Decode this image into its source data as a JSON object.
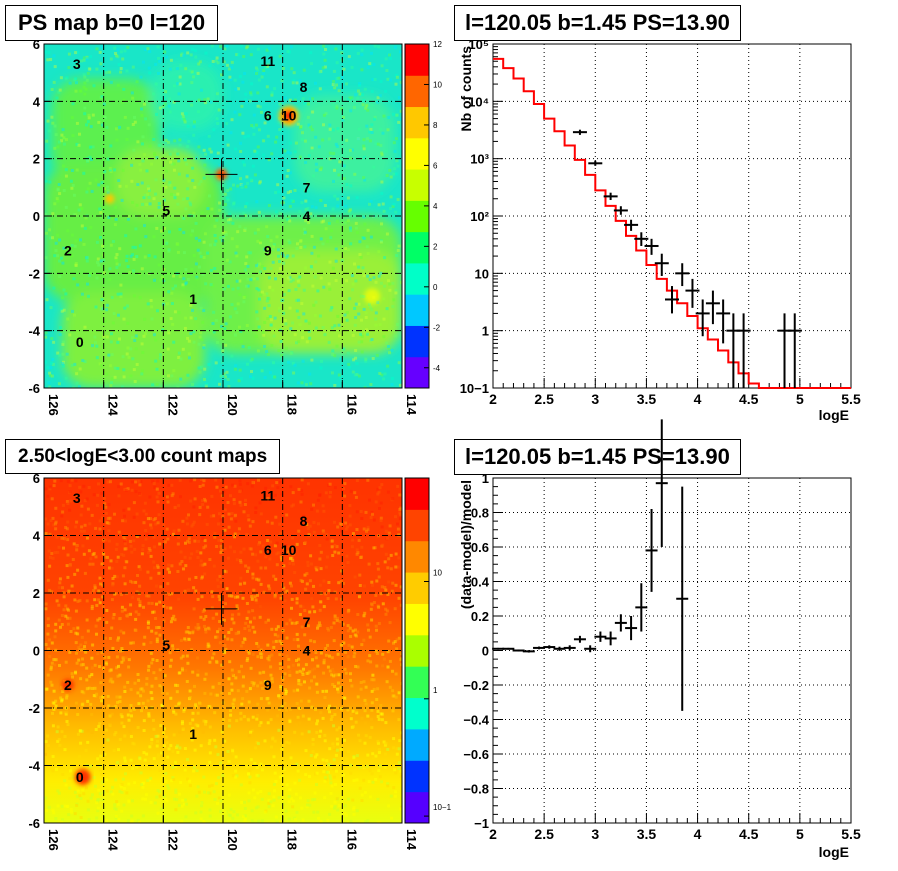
{
  "colors": {
    "model_line": "#ff0000",
    "data_points": "#000000",
    "grid": "#000000",
    "psmap_background": "#19e6c8",
    "psmap_palette": [
      "#6600ff",
      "#0033ff",
      "#00c8ff",
      "#00ffc8",
      "#00ff66",
      "#66ff00",
      "#c8ff00",
      "#ffff00",
      "#ffc800",
      "#ff6600",
      "#ff0000"
    ],
    "count_palette": [
      "#5500ff",
      "#0033ff",
      "#00aaff",
      "#00ffcc",
      "#33ff55",
      "#aaff00",
      "#ffff00",
      "#ffcc00",
      "#ff8800",
      "#ff4400",
      "#ff0000"
    ]
  },
  "chart_data": [
    {
      "panel": "ps-map",
      "type": "heatmap",
      "title": "PS map b=0 l=120",
      "x_ticks": [
        "126",
        "124",
        "122",
        "120",
        "118",
        "116",
        "114"
      ],
      "y_ticks": [
        "6",
        "4",
        "2",
        "0",
        "-2",
        "-4",
        "-6"
      ],
      "xlim": [
        126,
        114
      ],
      "ylim": [
        -6,
        6
      ],
      "grid": true,
      "colorbar_ticks": [
        "12",
        "10",
        "8",
        "6",
        "4",
        "2",
        "0",
        "-2",
        "-4"
      ],
      "colorbar_range": [
        -5,
        12
      ],
      "marker": {
        "l": 120.05,
        "b": 1.45
      },
      "sources": [
        {
          "label": "0",
          "l": 124.8,
          "b": -4.4
        },
        {
          "label": "1",
          "l": 121.0,
          "b": -2.9
        },
        {
          "label": "2",
          "l": 125.2,
          "b": -1.2
        },
        {
          "label": "3",
          "l": 124.9,
          "b": 5.3
        },
        {
          "label": "4",
          "l": 117.2,
          "b": 0.0
        },
        {
          "label": "5",
          "l": 121.9,
          "b": 0.2
        },
        {
          "label": "6",
          "l": 118.5,
          "b": 3.5
        },
        {
          "label": "7",
          "l": 117.2,
          "b": 1.0
        },
        {
          "label": "8",
          "l": 117.3,
          "b": 4.5
        },
        {
          "label": "9",
          "l": 118.5,
          "b": -1.2
        },
        {
          "label": "10",
          "l": 117.8,
          "b": 3.5
        },
        {
          "label": "11",
          "l": 118.5,
          "b": 5.4
        }
      ]
    },
    {
      "panel": "spectrum",
      "type": "line",
      "title": "l=120.05 b=1.45 PS=13.90",
      "xlabel": "logE",
      "ylabel": "Nb of counts",
      "xlim": [
        2,
        5.5
      ],
      "ylim": [
        0.1,
        100000
      ],
      "yscale": "log",
      "grid": true,
      "x_ticks": [
        "2",
        "2.5",
        "3",
        "3.5",
        "4",
        "4.5",
        "5",
        "5.5"
      ],
      "y_ticks": [
        "10−1",
        "1",
        "10",
        "10²",
        "10³",
        "10⁴",
        "10⁵"
      ],
      "model": {
        "bin_edges": [
          2.0,
          2.1,
          2.2,
          2.3,
          2.4,
          2.5,
          2.6,
          2.7,
          2.8,
          2.9,
          3.0,
          3.1,
          3.2,
          3.3,
          3.4,
          3.5,
          3.6,
          3.7,
          3.8,
          3.9,
          4.0,
          4.1,
          4.2,
          4.3,
          4.4,
          4.5,
          4.6,
          4.7,
          4.8,
          4.9,
          5.0,
          5.1,
          5.2,
          5.3,
          5.4,
          5.5
        ],
        "values": [
          55000,
          38000,
          25000,
          15000,
          9000,
          5000,
          3000,
          1700,
          950,
          520,
          280,
          150,
          82,
          45,
          25,
          14,
          8,
          5,
          3,
          1.8,
          1.1,
          0.7,
          0.45,
          0.28,
          0.18,
          0.12,
          0.1,
          0.1,
          0.1,
          0.1,
          0.1,
          0.1,
          0.1,
          0.1,
          0.1
        ]
      },
      "data": {
        "x": [
          2.85,
          3.0,
          3.15,
          3.25,
          3.35,
          3.45,
          3.55,
          3.65,
          3.75,
          3.85,
          3.95,
          4.05,
          4.15,
          4.25,
          4.35,
          4.45,
          4.85,
          4.95
        ],
        "y": [
          2900,
          830,
          220,
          125,
          70,
          40,
          30,
          15,
          3.5,
          10,
          5,
          2,
          3,
          2,
          1,
          1,
          1,
          1
        ],
        "y_low": [
          2600,
          750,
          190,
          105,
          55,
          30,
          21,
          9,
          2,
          6,
          2.5,
          0.8,
          1.3,
          0.6,
          0.1,
          0.1,
          0.1,
          0.1
        ],
        "y_high": [
          3200,
          920,
          255,
          148,
          86,
          52,
          40,
          22,
          6,
          15,
          8,
          3.5,
          5,
          3.5,
          2,
          2,
          2,
          2
        ]
      }
    },
    {
      "panel": "count-map",
      "type": "heatmap",
      "title": "2.50<logE<3.00 count maps",
      "x_ticks": [
        "126",
        "124",
        "122",
        "120",
        "118",
        "116",
        "114"
      ],
      "y_ticks": [
        "6",
        "4",
        "2",
        "0",
        "-2",
        "-4",
        "-6"
      ],
      "xlim": [
        126,
        114
      ],
      "ylim": [
        -6,
        6
      ],
      "grid": true,
      "zscale": "log",
      "colorbar_ticks": [
        "10",
        "1",
        "10−1"
      ],
      "marker": {
        "l": 120.05,
        "b": 1.45
      },
      "sources": [
        {
          "label": "0",
          "l": 124.8,
          "b": -4.4
        },
        {
          "label": "1",
          "l": 121.0,
          "b": -2.9
        },
        {
          "label": "2",
          "l": 125.2,
          "b": -1.2
        },
        {
          "label": "3",
          "l": 124.9,
          "b": 5.3
        },
        {
          "label": "4",
          "l": 117.2,
          "b": 0.0
        },
        {
          "label": "5",
          "l": 121.9,
          "b": 0.2
        },
        {
          "label": "6",
          "l": 118.5,
          "b": 3.5
        },
        {
          "label": "7",
          "l": 117.2,
          "b": 1.0
        },
        {
          "label": "8",
          "l": 117.3,
          "b": 4.5
        },
        {
          "label": "9",
          "l": 118.5,
          "b": -1.2
        },
        {
          "label": "10",
          "l": 117.8,
          "b": 3.5
        },
        {
          "label": "11",
          "l": 118.5,
          "b": 5.4
        }
      ]
    },
    {
      "panel": "residual",
      "type": "scatter",
      "title": "l=120.05 b=1.45 PS=13.90",
      "xlabel": "logE",
      "ylabel": "(data-model)/model",
      "xlim": [
        2,
        5.5
      ],
      "ylim": [
        -1,
        1
      ],
      "grid": true,
      "x_ticks": [
        "2",
        "2.5",
        "3",
        "3.5",
        "4",
        "4.5",
        "5",
        "5.5"
      ],
      "y_ticks": [
        "1",
        "0.8",
        "0.6",
        "0.4",
        "0.2",
        "0",
        "−0.2",
        "−0.4",
        "−0.6",
        "−0.8",
        "−1"
      ],
      "data": {
        "x": [
          2.05,
          2.15,
          2.25,
          2.35,
          2.45,
          2.55,
          2.65,
          2.75,
          2.85,
          2.95,
          3.05,
          3.15,
          3.25,
          3.35,
          3.45,
          3.55,
          3.65,
          3.85
        ],
        "y": [
          0.01,
          0.01,
          0.0,
          -0.005,
          0.015,
          0.02,
          0.01,
          0.015,
          0.065,
          0.01,
          0.08,
          0.07,
          0.16,
          0.13,
          0.25,
          0.58,
          0.97,
          0.3
        ],
        "err": [
          0.005,
          0.005,
          0.006,
          0.007,
          0.008,
          0.01,
          0.012,
          0.015,
          0.02,
          0.02,
          0.03,
          0.04,
          0.05,
          0.07,
          0.14,
          0.24,
          0.37,
          0.65
        ]
      }
    }
  ]
}
